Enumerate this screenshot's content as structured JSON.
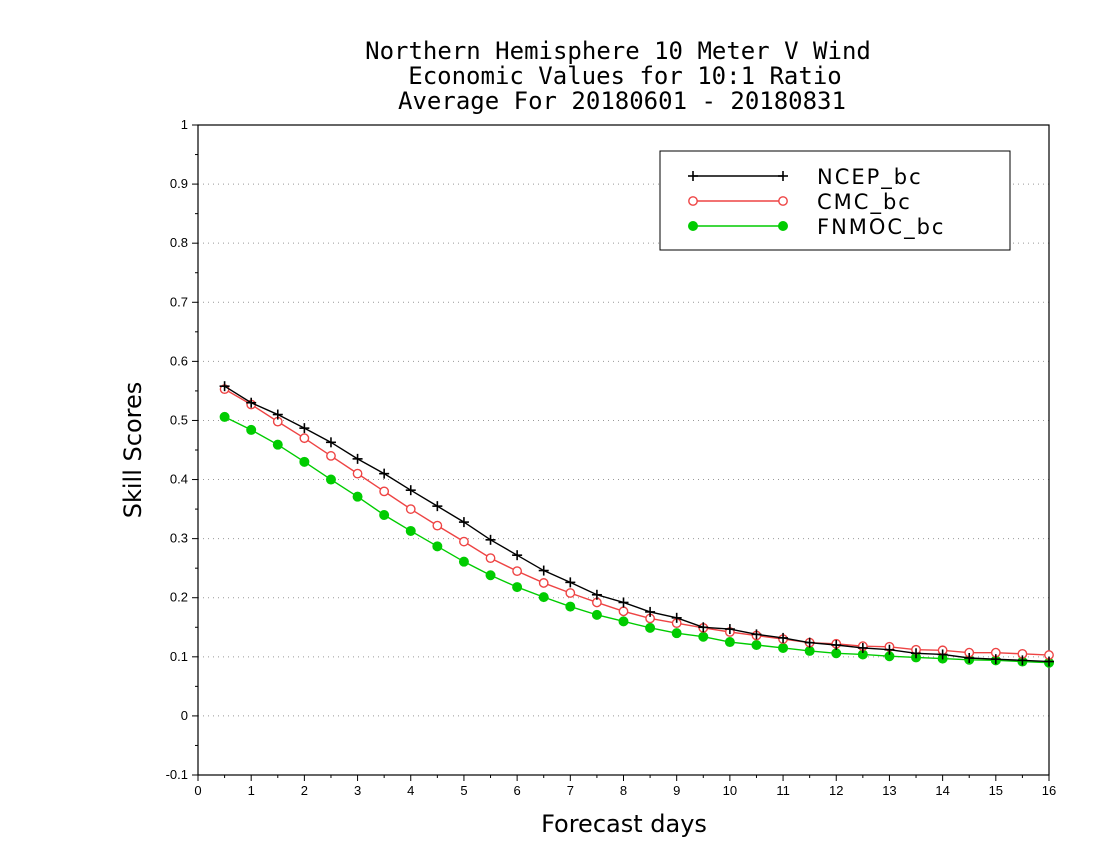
{
  "chart_data": {
    "type": "line",
    "title_lines": [
      "Northern Hemisphere 10 Meter V Wind",
      "Economic Values for 10:1 Ratio",
      "Average For 20180601 - 20180831"
    ],
    "xlabel": "Forecast days",
    "ylabel": "Skill Scores",
    "xlim": [
      0,
      16
    ],
    "ylim": [
      -0.1,
      1
    ],
    "x_ticks": [
      0,
      1,
      2,
      3,
      4,
      5,
      6,
      7,
      8,
      9,
      10,
      11,
      12,
      13,
      14,
      15,
      16
    ],
    "x_tick_labels": [
      "0",
      "1",
      "2",
      "3",
      "4",
      "5",
      "6",
      "7",
      "8",
      "9",
      "10",
      "11",
      "12",
      "13",
      "14",
      "15",
      "16"
    ],
    "y_ticks": [
      -0.1,
      0,
      0.1,
      0.2,
      0.3,
      0.4,
      0.5,
      0.6,
      0.7,
      0.8,
      0.9,
      1
    ],
    "y_tick_labels": [
      "-0.1",
      "0",
      "0.1",
      "0.2",
      "0.3",
      "0.4",
      "0.5",
      "0.6",
      "0.7",
      "0.8",
      "0.9",
      "1"
    ],
    "grid": true,
    "legend_position": "top-right",
    "x": [
      0.5,
      1,
      1.5,
      2,
      2.5,
      3,
      3.5,
      4,
      4.5,
      5,
      5.5,
      6,
      6.5,
      7,
      7.5,
      8,
      8.5,
      9,
      9.5,
      10,
      10.5,
      11,
      11.5,
      12,
      12.5,
      13,
      13.5,
      14,
      14.5,
      15,
      15.5,
      16
    ],
    "series": [
      {
        "name": "NCEP_bc",
        "color": "#000000",
        "marker": "plus",
        "values": [
          0.558,
          0.53,
          0.51,
          0.487,
          0.463,
          0.435,
          0.41,
          0.382,
          0.355,
          0.328,
          0.298,
          0.272,
          0.246,
          0.226,
          0.205,
          0.192,
          0.176,
          0.166,
          0.15,
          0.147,
          0.138,
          0.132,
          0.124,
          0.12,
          0.115,
          0.112,
          0.106,
          0.104,
          0.098,
          0.096,
          0.094,
          0.092
        ]
      },
      {
        "name": "CMC_bc",
        "color": "#ee4444",
        "marker": "open-circle",
        "values": [
          0.553,
          0.527,
          0.498,
          0.47,
          0.44,
          0.41,
          0.38,
          0.35,
          0.322,
          0.295,
          0.267,
          0.245,
          0.225,
          0.208,
          0.192,
          0.177,
          0.165,
          0.157,
          0.149,
          0.142,
          0.136,
          0.13,
          0.124,
          0.122,
          0.118,
          0.117,
          0.112,
          0.111,
          0.107,
          0.107,
          0.105,
          0.103
        ]
      },
      {
        "name": "FNMOC_bc",
        "color": "#00cc00",
        "marker": "filled-circle",
        "values": [
          0.506,
          0.484,
          0.459,
          0.43,
          0.4,
          0.371,
          0.34,
          0.313,
          0.287,
          0.261,
          0.238,
          0.218,
          0.201,
          0.185,
          0.171,
          0.16,
          0.149,
          0.14,
          0.134,
          0.125,
          0.12,
          0.115,
          0.11,
          0.106,
          0.104,
          0.101,
          0.099,
          0.097,
          0.095,
          0.094,
          0.092,
          0.09
        ]
      }
    ]
  }
}
